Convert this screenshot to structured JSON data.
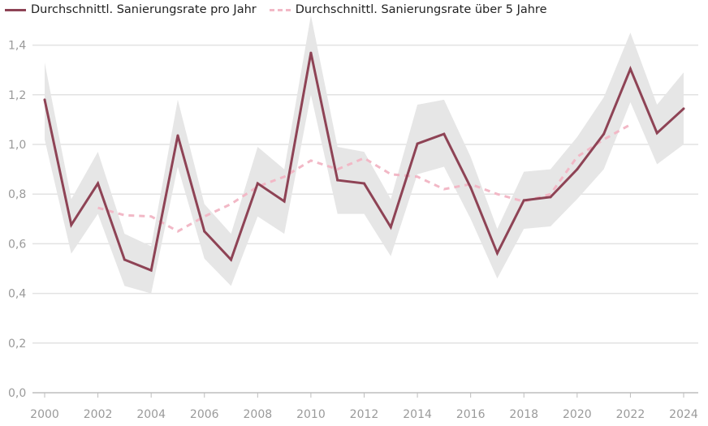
{
  "chart_data": {
    "type": "line",
    "title": "",
    "xlabel": "",
    "ylabel": "",
    "ylim": [
      0,
      1.5
    ],
    "yticks": [
      "0,0",
      "0,2",
      "0,4",
      "0,6",
      "0,8",
      "1,0",
      "1,2",
      "1,4"
    ],
    "ytick_values": [
      0,
      0.2,
      0.4,
      0.6,
      0.8,
      1.0,
      1.2,
      1.4
    ],
    "xticks": [
      "2000",
      "2002",
      "2004",
      "2006",
      "2008",
      "2010",
      "2012",
      "2014",
      "2016",
      "2018",
      "2020",
      "2022",
      "2024"
    ],
    "grid": true,
    "legend_position": "top-left",
    "x": [
      2000,
      2001,
      2002,
      2003,
      2004,
      2005,
      2006,
      2007,
      2008,
      2009,
      2010,
      2011,
      2012,
      2013,
      2014,
      2015,
      2016,
      2017,
      2018,
      2019,
      2020,
      2021,
      2022,
      2023,
      2024
    ],
    "series": [
      {
        "name": "Durchschnittl. Sanierungsrate pro Jahr",
        "color": "#8e4355",
        "style": "solid",
        "values": [
          1.18,
          0.676,
          0.843,
          0.536,
          0.493,
          1.036,
          0.65,
          0.536,
          0.843,
          0.771,
          1.369,
          0.856,
          0.843,
          0.667,
          1.003,
          1.042,
          0.827,
          0.562,
          0.775,
          0.788,
          0.9,
          1.042,
          1.304,
          1.046,
          1.144
        ],
        "band_upper": [
          1.33,
          0.78,
          0.97,
          0.64,
          0.59,
          1.18,
          0.76,
          0.64,
          0.99,
          0.9,
          1.52,
          0.99,
          0.97,
          0.78,
          1.16,
          1.18,
          0.95,
          0.66,
          0.89,
          0.9,
          1.03,
          1.19,
          1.45,
          1.16,
          1.29
        ],
        "band_lower": [
          1.02,
          0.56,
          0.72,
          0.43,
          0.4,
          0.91,
          0.54,
          0.43,
          0.71,
          0.64,
          1.2,
          0.72,
          0.72,
          0.55,
          0.88,
          0.91,
          0.7,
          0.46,
          0.66,
          0.67,
          0.78,
          0.9,
          1.17,
          0.92,
          1.0
        ],
        "band_color": "#e6e6e6"
      },
      {
        "name": "Durchschnittl. Sanierungsrate über 5 Jahre",
        "color": "#f2b8c6",
        "style": "dashed",
        "x": [
          2002,
          2003,
          2004,
          2005,
          2006,
          2007,
          2008,
          2009,
          2010,
          2011,
          2012,
          2013,
          2014,
          2015,
          2016,
          2017,
          2018,
          2019,
          2020,
          2021,
          2022
        ],
        "values": [
          0.745,
          0.715,
          0.71,
          0.65,
          0.71,
          0.76,
          0.83,
          0.87,
          0.935,
          0.9,
          0.945,
          0.88,
          0.87,
          0.82,
          0.84,
          0.8,
          0.77,
          0.8,
          0.95,
          1.02,
          1.08
        ]
      }
    ]
  }
}
